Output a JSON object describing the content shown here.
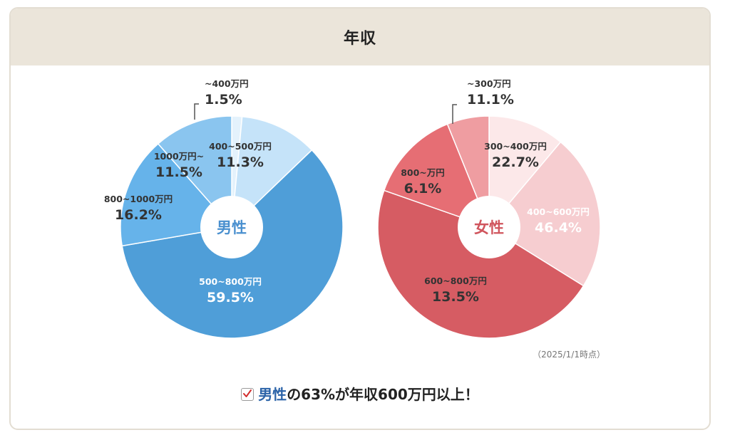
{
  "header": {
    "title": "年収"
  },
  "chart_data": [
    {
      "type": "pie",
      "center_label": "男性",
      "categories": [
        "~400万円",
        "400~500万円",
        "500~800万円",
        "800~1000万円",
        "1000万円~"
      ],
      "values": [
        1.5,
        11.3,
        59.5,
        16.2,
        11.5
      ],
      "value_labels": [
        "1.5%",
        "11.3%",
        "59.5%",
        "16.2%",
        "11.5%"
      ],
      "colors": [
        "#e4f2fc",
        "#c5e3f9",
        "#4f9ed8",
        "#66b3ea",
        "#8ac5ef"
      ],
      "label_colors": [
        "#333333",
        "#333333",
        "#ffffff",
        "#333333",
        "#333333"
      ],
      "center_color": "#4a90cf"
    },
    {
      "type": "pie",
      "center_label": "女性",
      "categories": [
        "~300万円",
        "300~400万円",
        "400~600万円",
        "600~800万円",
        "800~万円"
      ],
      "values": [
        11.1,
        22.7,
        46.4,
        13.5,
        6.1
      ],
      "value_labels": [
        "11.1%",
        "22.7%",
        "46.4%",
        "13.5%",
        "6.1%"
      ],
      "colors": [
        "#fce8e9",
        "#f6cdd0",
        "#d65c63",
        "#e66e74",
        "#ef9da1"
      ],
      "label_colors": [
        "#333333",
        "#333333",
        "#ffffff",
        "#333333",
        "#333333"
      ],
      "center_color": "#d0555d"
    }
  ],
  "note": "（2025/1/1時点）",
  "conclusion": {
    "highlight": "男性",
    "text": "の63%が年収600万円以上！"
  }
}
